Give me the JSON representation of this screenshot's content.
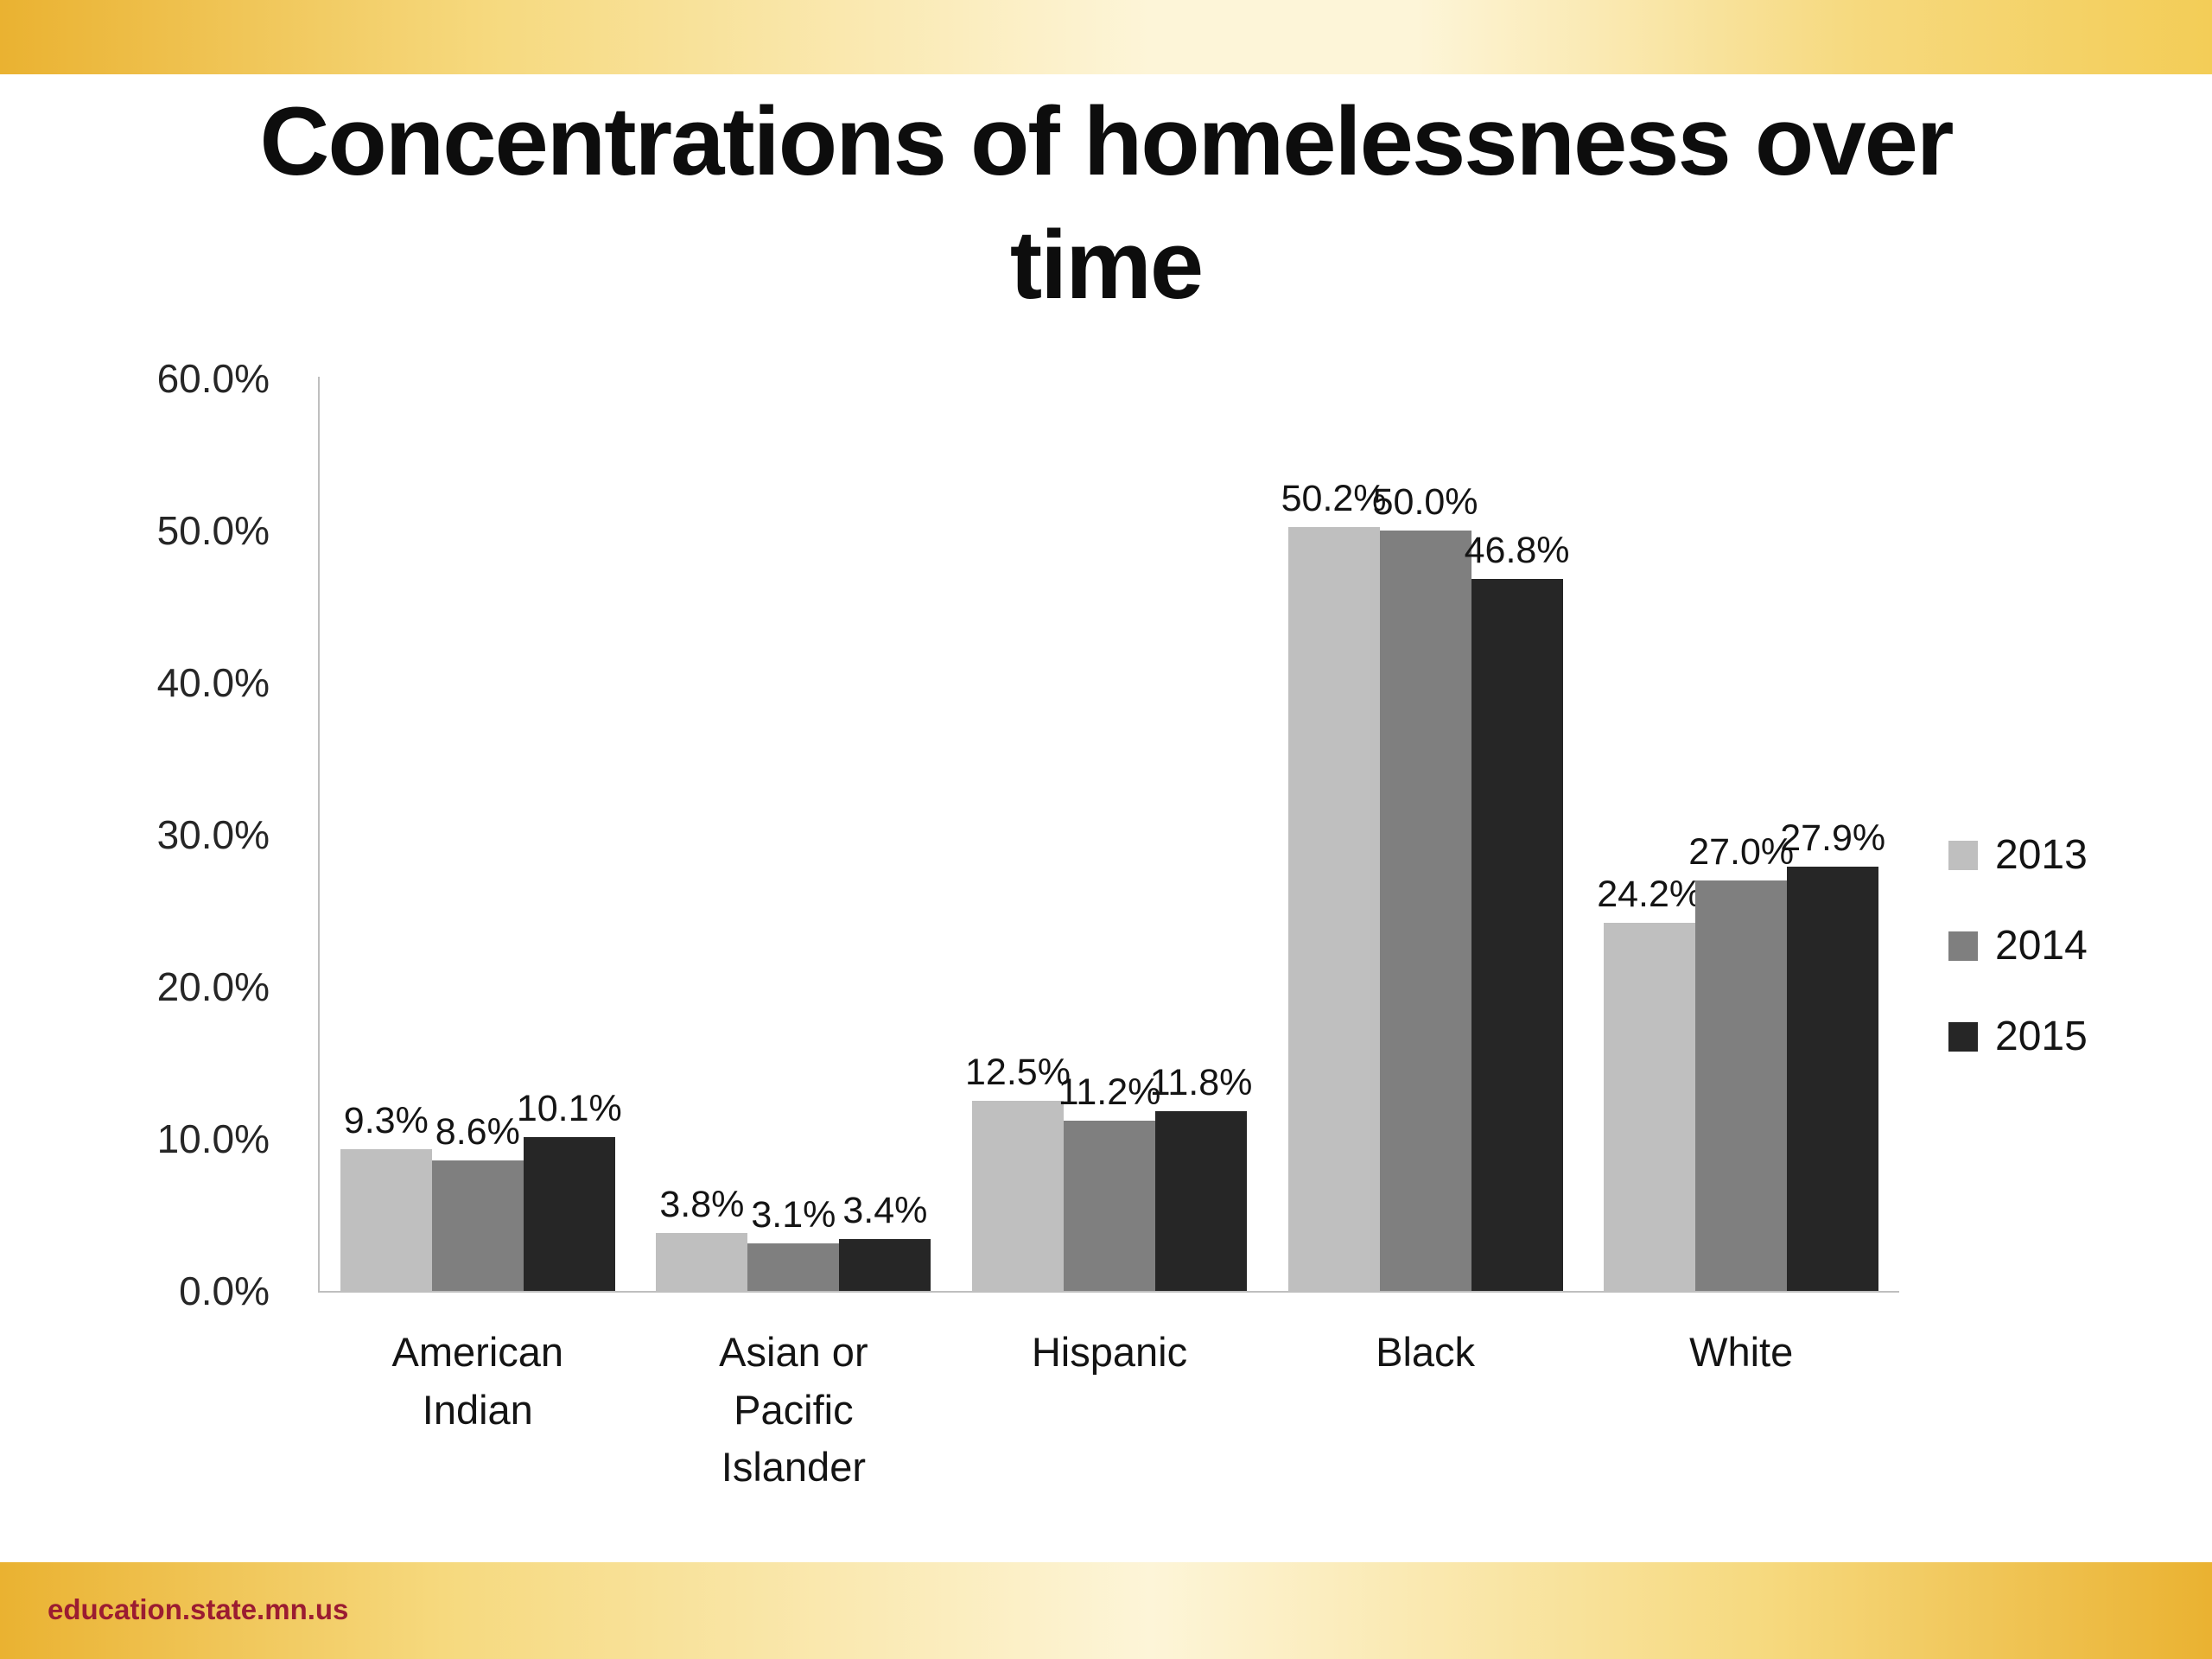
{
  "slide": {
    "title": "Concentrations of homelessness over time",
    "title_line1": "Concentrations of homelessness over",
    "title_line2": "time",
    "footer_link": "education.state.mn.us"
  },
  "theme": {
    "accent_gold": "#eab231",
    "accent_gold_soft": "#f6d97e",
    "accent_gold_pale": "#fdf5d8",
    "accent_gold_right": "#f3cd57",
    "footer_text_color": "#9b1c31",
    "axis_line_color": "#bfbfbf",
    "text_color": "#1a1a1a"
  },
  "chart_data": {
    "type": "bar",
    "title": "Concentrations of homelessness over time",
    "categories": [
      "American Indian",
      "Asian or Pacific Islander",
      "Hispanic",
      "Black",
      "White"
    ],
    "series": [
      {
        "name": "2013",
        "color": "#bfbfbf",
        "values": [
          9.3,
          3.8,
          12.5,
          50.2,
          24.2
        ]
      },
      {
        "name": "2014",
        "color": "#7f7f7f",
        "values": [
          8.6,
          3.1,
          11.2,
          50.0,
          27.0
        ]
      },
      {
        "name": "2015",
        "color": "#262626",
        "values": [
          10.1,
          3.4,
          11.8,
          46.8,
          27.9
        ]
      }
    ],
    "value_suffix": "%",
    "value_decimals": 1,
    "xlabel": "",
    "ylabel": "",
    "ylim": [
      0,
      60
    ],
    "yticks": [
      0,
      10,
      20,
      30,
      40,
      50,
      60
    ],
    "ytick_labels": [
      "0.0%",
      "10.0%",
      "20.0%",
      "30.0%",
      "40.0%",
      "50.0%",
      "60.0%"
    ],
    "grid": false,
    "legend_position": "right",
    "legend_entries": [
      "2013",
      "2014",
      "2015"
    ]
  }
}
